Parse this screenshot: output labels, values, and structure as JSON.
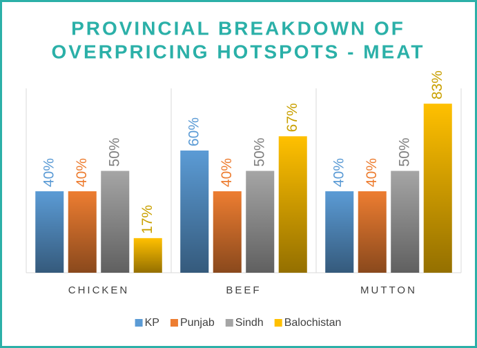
{
  "chart_data": {
    "type": "bar",
    "title": [
      "PROVINCIAL BREAKDOWN OF",
      "OVERPRICING HOTSPOTS - MEAT"
    ],
    "categories": [
      "CHICKEN",
      "BEEF",
      "MUTTON"
    ],
    "series": [
      {
        "name": "KP",
        "color": "#5b9bd5",
        "values": [
          40,
          60,
          40
        ],
        "value_labels": [
          "40%",
          "60%",
          "40%"
        ]
      },
      {
        "name": "Punjab",
        "color": "#ed7d31",
        "values": [
          40,
          40,
          40
        ],
        "value_labels": [
          "40%",
          "40%",
          "40%"
        ]
      },
      {
        "name": "Sindh",
        "color": "#a5a5a5",
        "values": [
          50,
          50,
          50
        ],
        "value_labels": [
          "50%",
          "50%",
          "50%"
        ]
      },
      {
        "name": "Balochistan",
        "color": "#ffc000",
        "values": [
          17,
          67,
          83
        ],
        "value_labels": [
          "17%",
          "67%",
          "83%"
        ]
      }
    ],
    "ylim": [
      0,
      100
    ],
    "legend": "bottom"
  }
}
